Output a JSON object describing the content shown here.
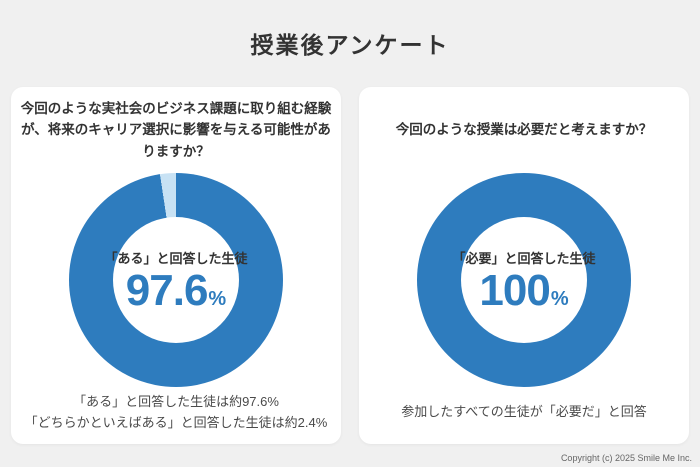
{
  "page": {
    "title": "授業後アンケート",
    "background": "#f0f0f0"
  },
  "footer": {
    "copyright": "Copyright (c) 2025 Smile Me Inc."
  },
  "colors": {
    "primary_blue": "#2E7CBE",
    "light_blue": "#C8E2F4",
    "card_bg": "#ffffff",
    "text_dark": "#333333",
    "text_gray": "#4a4a4a"
  },
  "chart_data": [
    {
      "type": "pie",
      "style": "donut",
      "question": "今回のような実社会のビジネス課題に取り組む経験が、将来のキャリア選択に影響を与える可能性がありますか？",
      "center_label": "「ある」と回答した生徒",
      "center_value": "97.6",
      "center_unit": "%",
      "slices": [
        {
          "label": "ある",
          "value": 97.6,
          "color": "#2E7CBE"
        },
        {
          "label": "どちらかといえばある",
          "value": 2.4,
          "color": "#C8E2F4"
        }
      ],
      "notes": [
        "「ある」と回答した生徒は約97.6%",
        "「どちらかといえばある」と回答した生徒は約2.4%"
      ]
    },
    {
      "type": "pie",
      "style": "donut",
      "question": "今回のような授業は必要だと考えますか？",
      "center_label": "「必要」と回答した生徒",
      "center_value": "100",
      "center_unit": "%",
      "slices": [
        {
          "label": "必要",
          "value": 100,
          "color": "#2E7CBE"
        }
      ],
      "notes": [
        "参加したすべての生徒が「必要だ」と回答"
      ]
    }
  ]
}
